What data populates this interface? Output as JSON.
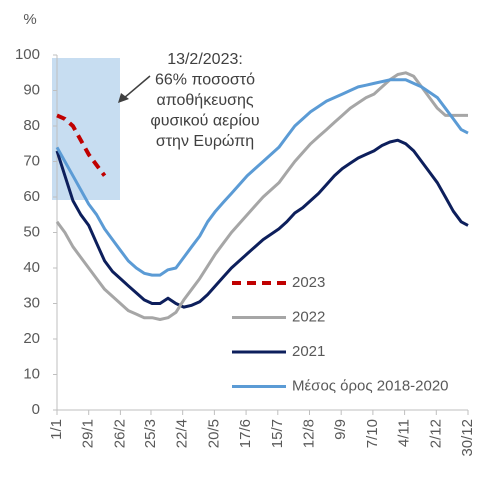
{
  "chart_data": {
    "type": "line",
    "y_label": "%",
    "annotation": [
      "13/2/2023:",
      "66% ποσοστό",
      "αποθήκευσης",
      "φυσικού αερίου",
      "στην Ευρώπη"
    ],
    "x": [
      1,
      8,
      15,
      22,
      29,
      36,
      43,
      50,
      57,
      64,
      71,
      78,
      85,
      92,
      99,
      106,
      113,
      120,
      127,
      134,
      141,
      148,
      155,
      162,
      169,
      176,
      183,
      190,
      197,
      204,
      211,
      218,
      225,
      232,
      239,
      246,
      253,
      260,
      267,
      274,
      281,
      288,
      295,
      302,
      309,
      316,
      323,
      330,
      337,
      344,
      351,
      358,
      364
    ],
    "xlim": [
      1,
      364
    ],
    "xticks": [
      {
        "value": 1,
        "label": "1/1"
      },
      {
        "value": 29,
        "label": "29/1"
      },
      {
        "value": 57,
        "label": "26/2"
      },
      {
        "value": 84,
        "label": "25/3"
      },
      {
        "value": 112,
        "label": "22/4"
      },
      {
        "value": 140,
        "label": "20/5"
      },
      {
        "value": 168,
        "label": "17/6"
      },
      {
        "value": 196,
        "label": "15/7"
      },
      {
        "value": 224,
        "label": "12/8"
      },
      {
        "value": 252,
        "label": "9/9"
      },
      {
        "value": 280,
        "label": "7/10"
      },
      {
        "value": 308,
        "label": "4/11"
      },
      {
        "value": 336,
        "label": "2/12"
      },
      {
        "value": 364,
        "label": "30/12"
      }
    ],
    "ylim": [
      0,
      100
    ],
    "yticks": [
      0,
      10,
      20,
      30,
      40,
      50,
      60,
      70,
      80,
      90,
      100
    ],
    "series": [
      {
        "name": "2023",
        "color": "#c00000",
        "dashed": true,
        "values": [
          83,
          82,
          80,
          76,
          72,
          69,
          66,
          null,
          null,
          null,
          null,
          null,
          null,
          null,
          null,
          null,
          null,
          null,
          null,
          null,
          null,
          null,
          null,
          null,
          null,
          null,
          null,
          null,
          null,
          null,
          null,
          null,
          null,
          null,
          null,
          null,
          null,
          null,
          null,
          null,
          null,
          null,
          null,
          null,
          null,
          null,
          null,
          null,
          null,
          null,
          null,
          null,
          null
        ]
      },
      {
        "name": "2022",
        "color": "#a6a6a6",
        "values": [
          53,
          50,
          46,
          43,
          40,
          37,
          34,
          32,
          30,
          28,
          27,
          26,
          26,
          25.5,
          26,
          27.5,
          31,
          34,
          37,
          40.5,
          44,
          47,
          50,
          52.5,
          55,
          57.5,
          60,
          62,
          64,
          67,
          70,
          72.5,
          75,
          77,
          79,
          81,
          83,
          85,
          86.5,
          88,
          89,
          91,
          93,
          94.5,
          95,
          94,
          91,
          88,
          85,
          83,
          83,
          83,
          83
        ]
      },
      {
        "name": "2021",
        "color": "#0d1f5c",
        "values": [
          73,
          66,
          59,
          55,
          52,
          47,
          42,
          39,
          37,
          35,
          33,
          31,
          30,
          30,
          31.5,
          30,
          29,
          29.5,
          30.5,
          32.5,
          35,
          37.5,
          40,
          42,
          44,
          46,
          48,
          49.5,
          51,
          53,
          55.5,
          57,
          59,
          61,
          63.5,
          66,
          68,
          69.5,
          71,
          72,
          73,
          74.5,
          75.5,
          76,
          75,
          73,
          70,
          67,
          64,
          60,
          56,
          53,
          52
        ]
      },
      {
        "name": "Μέσος όρος 2018-2020",
        "color": "#5b9bd5",
        "values": [
          74,
          70,
          66,
          62,
          58,
          55,
          51,
          48,
          45,
          42,
          40,
          38.5,
          38,
          38,
          39.5,
          40,
          43,
          46,
          49,
          53,
          56,
          58.5,
          61,
          63.5,
          66,
          68,
          70,
          72,
          74,
          77,
          80,
          82,
          84,
          85.5,
          87,
          88,
          89,
          90,
          91,
          91.5,
          92,
          92.5,
          93,
          93,
          93,
          92,
          91,
          89.5,
          88,
          85,
          82,
          79,
          78
        ]
      }
    ]
  }
}
